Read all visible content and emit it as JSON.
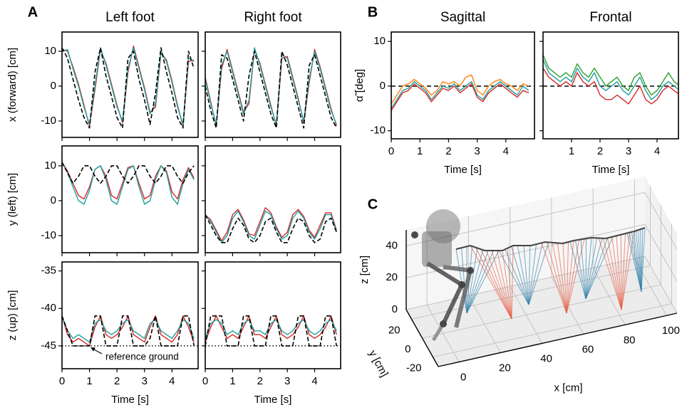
{
  "chart_data": [
    {
      "type": "line",
      "panel_label": "A",
      "title": "Left foot",
      "ylabel": "x (forward) [cm]",
      "x": [
        0,
        0.2,
        0.4,
        0.6,
        0.8,
        1,
        1.2,
        1.4,
        1.6,
        1.8,
        2,
        2.2,
        2.4,
        2.6,
        2.8,
        3,
        3.2,
        3.4,
        3.6,
        3.8,
        4,
        4.2,
        4.4,
        4.6,
        4.8
      ],
      "series": [
        {
          "color": "#d62728",
          "values": [
            10.5,
            10,
            5.5,
            0.5,
            -5.5,
            -11.5,
            -1,
            10.5,
            6.5,
            0.5,
            -5.5,
            -10.5,
            4,
            11.5,
            5.5,
            -0.5,
            -7.5,
            -6,
            9.5,
            7.5,
            1.5,
            -5.5,
            -11.5,
            7,
            7.5
          ]
        },
        {
          "color": "#1f9e9e",
          "values": [
            10,
            10.5,
            5,
            0,
            -6,
            -11,
            0,
            11,
            6,
            0,
            -6,
            -10,
            5,
            11,
            5,
            -1,
            -8,
            -5,
            10,
            7,
            1,
            -6,
            -11,
            8,
            7
          ]
        },
        {
          "color": "#000000",
          "dashed": true,
          "values": [
            11,
            8,
            2,
            -4,
            -9,
            -12,
            4,
            11,
            3,
            -3,
            -9,
            -12,
            8,
            10,
            2,
            -4,
            -11,
            -2,
            11,
            4,
            -2,
            -9,
            -12,
            10,
            5
          ]
        }
      ],
      "xlim": [
        0,
        4.95
      ],
      "ylim": [
        -14.7,
        15.5
      ],
      "xticks": [
        0,
        1,
        2,
        3,
        4
      ],
      "yticks": [
        -10,
        0,
        10
      ],
      "show_xticklabels": false,
      "show_yticklabels": true
    },
    {
      "type": "line",
      "title": "Right foot",
      "x": [
        0,
        0.2,
        0.4,
        0.6,
        0.8,
        1,
        1.2,
        1.4,
        1.6,
        1.8,
        2,
        2.2,
        2.4,
        2.6,
        2.8,
        3,
        3.2,
        3.4,
        3.6,
        3.8,
        4,
        4.2,
        4.4,
        4.6,
        4.8
      ],
      "series": [
        {
          "color": "#d62728",
          "values": [
            2.5,
            -4.5,
            -11.5,
            5,
            10.5,
            4.5,
            -1.5,
            -7.5,
            -5,
            10.5,
            6.5,
            0.5,
            -5.5,
            -11.5,
            8,
            8.5,
            2.5,
            -3.5,
            -10.5,
            1,
            10.5,
            5.5,
            -0.5,
            -6.5,
            -11.5
          ]
        },
        {
          "color": "#1f9e9e",
          "values": [
            2,
            -5,
            -11,
            6,
            10,
            4,
            -2,
            -8,
            -4,
            11,
            6,
            0,
            -6,
            -11,
            9,
            8,
            2,
            -4,
            -10,
            2,
            10,
            5,
            -1,
            -7,
            -11
          ]
        },
        {
          "color": "#000000",
          "dashed": true,
          "values": [
            0,
            -7,
            -12,
            9,
            8,
            2,
            -4,
            -10,
            3,
            10,
            4,
            -2,
            -8,
            -12,
            10,
            6,
            0,
            -6,
            -12,
            6,
            9,
            3,
            -3,
            -9,
            -12
          ]
        }
      ],
      "xlim": [
        0,
        4.95
      ],
      "ylim": [
        -14.7,
        15.5
      ],
      "xticks": [
        0,
        1,
        2,
        3,
        4
      ],
      "yticks": [
        -10,
        0,
        10
      ],
      "show_xticklabels": false,
      "show_yticklabels": false
    },
    {
      "type": "line",
      "ylabel": "y (left) [cm]",
      "x": [
        0,
        0.2,
        0.4,
        0.6,
        0.8,
        1,
        1.2,
        1.4,
        1.6,
        1.8,
        2,
        2.2,
        2.4,
        2.6,
        2.8,
        3,
        3.2,
        3.4,
        3.6,
        3.8,
        4,
        4.2,
        4.4,
        4.6,
        4.8
      ],
      "series": [
        {
          "color": "#d62728",
          "values": [
            11,
            8.5,
            5,
            1.5,
            0.5,
            4,
            9,
            10,
            7,
            1.5,
            0.5,
            5,
            9.5,
            10,
            5,
            0.5,
            1.5,
            7,
            10,
            8.5,
            2.5,
            0.5,
            6,
            9.5,
            6.5
          ]
        },
        {
          "color": "#1f9e9e",
          "values": [
            11,
            8,
            4,
            0,
            -1,
            3,
            9,
            10,
            6,
            0,
            -1,
            4,
            9,
            10,
            4,
            -1,
            0,
            6,
            10,
            8,
            1,
            -1,
            5,
            9,
            6
          ]
        },
        {
          "color": "#000000",
          "dashed": true,
          "values": [
            11,
            8,
            5,
            7,
            10,
            10,
            7,
            5,
            7,
            10,
            10,
            7,
            5,
            7,
            10,
            10,
            7,
            5,
            7,
            10,
            10,
            7,
            5,
            8,
            10
          ]
        }
      ],
      "xlim": [
        0,
        4.95
      ],
      "ylim": [
        -14.9,
        15.7
      ],
      "xticks": [
        0,
        1,
        2,
        3,
        4
      ],
      "yticks": [
        -10,
        0,
        10
      ],
      "show_xticklabels": false,
      "show_yticklabels": true
    },
    {
      "type": "line",
      "x": [
        0,
        0.2,
        0.4,
        0.6,
        0.8,
        1,
        1.2,
        1.4,
        1.6,
        1.8,
        2,
        2.2,
        2.4,
        2.6,
        2.8,
        3,
        3.2,
        3.4,
        3.6,
        3.8,
        4,
        4.2,
        4.4,
        4.6,
        4.8
      ],
      "series": [
        {
          "color": "#d62728",
          "values": [
            -4,
            -5.5,
            -8.5,
            -11.5,
            -9,
            -4,
            -2.5,
            -5.5,
            -9.5,
            -10,
            -6,
            -2,
            -3.5,
            -7.5,
            -10.5,
            -9,
            -4,
            -2.5,
            -4.5,
            -8.5,
            -10.5,
            -7,
            -3.5,
            -3.5,
            -8.5
          ]
        },
        {
          "color": "#1f9e9e",
          "values": [
            -4,
            -6,
            -9,
            -12,
            -10,
            -5,
            -3,
            -6,
            -10,
            -11,
            -7,
            -3,
            -4,
            -8,
            -11,
            -10,
            -5,
            -3,
            -5,
            -9,
            -11,
            -8,
            -4,
            -4,
            -9
          ]
        },
        {
          "color": "#000000",
          "dashed": true,
          "values": [
            -4,
            -7,
            -10,
            -12,
            -12,
            -8,
            -5,
            -7,
            -11,
            -12,
            -10,
            -6,
            -5,
            -9,
            -12,
            -12,
            -8,
            -5,
            -6,
            -10,
            -12,
            -11,
            -6,
            -5,
            -9
          ]
        }
      ],
      "xlim": [
        0,
        4.95
      ],
      "ylim": [
        -14.9,
        15.7
      ],
      "xticks": [
        0,
        1,
        2,
        3,
        4
      ],
      "yticks": [
        -10,
        0,
        10
      ],
      "show_xticklabels": false,
      "show_yticklabels": false
    },
    {
      "type": "line",
      "ylabel": "z (up) [cm]",
      "xlabel": "Time [s]",
      "annotation": "reference ground",
      "x": [
        0,
        0.2,
        0.4,
        0.6,
        0.8,
        1,
        1.2,
        1.4,
        1.6,
        1.8,
        2,
        2.2,
        2.4,
        2.6,
        2.8,
        3,
        3.2,
        3.4,
        3.6,
        3.8,
        4,
        4.2,
        4.4,
        4.6,
        4.8
      ],
      "series": [
        {
          "color": "#d62728",
          "values": [
            -41,
            -43.5,
            -44.5,
            -44,
            -44.5,
            -45,
            -42.5,
            -41,
            -43.5,
            -44,
            -43.5,
            -42.5,
            -41,
            -43.5,
            -44,
            -44.5,
            -42.5,
            -41,
            -43.5,
            -44,
            -44.5,
            -43.5,
            -41,
            -42.5,
            -44.5
          ]
        },
        {
          "color": "#1f9e9e",
          "values": [
            -41,
            -43,
            -44,
            -43.5,
            -44,
            -44.5,
            -42,
            -41.5,
            -43,
            -43.5,
            -43,
            -42,
            -41.5,
            -43,
            -43.5,
            -44,
            -42,
            -41.5,
            -43,
            -43.5,
            -44,
            -43,
            -41.5,
            -42,
            -44
          ]
        },
        {
          "color": "#000000",
          "dashed": true,
          "values": [
            -41,
            -43,
            -45,
            -45,
            -45,
            -45,
            -41,
            -41,
            -45,
            -45,
            -45,
            -41,
            -41,
            -45,
            -45,
            -45,
            -44,
            -41,
            -45,
            -45,
            -45,
            -45,
            -41,
            -41,
            -45
          ]
        }
      ],
      "hlines": [
        {
          "value": -45,
          "style": "dotted"
        }
      ],
      "xlim": [
        0,
        4.95
      ],
      "ylim": [
        -48.05,
        -33.8
      ],
      "xticks": [
        0,
        1,
        2,
        3,
        4
      ],
      "yticks": [
        -45,
        -40,
        -35
      ],
      "show_xticklabels": true,
      "show_yticklabels": true
    },
    {
      "type": "line",
      "xlabel": "Time [s]",
      "x": [
        0,
        0.2,
        0.4,
        0.6,
        0.8,
        1,
        1.2,
        1.4,
        1.6,
        1.8,
        2,
        2.2,
        2.4,
        2.6,
        2.8,
        3,
        3.2,
        3.4,
        3.6,
        3.8,
        4,
        4.2,
        4.4,
        4.6,
        4.8
      ],
      "series": [
        {
          "color": "#d62728",
          "values": [
            -44.5,
            -42.5,
            -41,
            -42.5,
            -44,
            -43.5,
            -44,
            -42.5,
            -41,
            -43.5,
            -43.5,
            -44,
            -42.5,
            -41,
            -43.5,
            -44,
            -43.5,
            -42.5,
            -41,
            -43.5,
            -44,
            -43.5,
            -42.5,
            -41,
            -43.5
          ]
        },
        {
          "color": "#1f9e9e",
          "values": [
            -44,
            -42,
            -41.5,
            -42,
            -43.5,
            -43,
            -43.5,
            -42,
            -41.5,
            -43,
            -43,
            -43.5,
            -42,
            -41.5,
            -43,
            -43.5,
            -43,
            -42,
            -41.5,
            -43,
            -43.5,
            -43,
            -42,
            -41.5,
            -43
          ]
        },
        {
          "color": "#000000",
          "dashed": true,
          "values": [
            -45,
            -41,
            -41,
            -41,
            -45,
            -45,
            -45,
            -41,
            -41,
            -45,
            -45,
            -45,
            -41,
            -41,
            -45,
            -45,
            -45,
            -41,
            -41,
            -45,
            -45,
            -45,
            -41,
            -41,
            -45
          ]
        }
      ],
      "hlines": [
        {
          "value": -45,
          "style": "dotted"
        }
      ],
      "xlim": [
        0,
        4.95
      ],
      "ylim": [
        -48.05,
        -33.8
      ],
      "xticks": [
        0,
        1,
        2,
        3,
        4
      ],
      "yticks": [
        -45,
        -40,
        -35
      ],
      "show_xticklabels": true,
      "show_yticklabels": false
    },
    {
      "type": "line",
      "panel_label": "B",
      "title": "Sagittal",
      "ylabel": "α̃ [deg]",
      "xlabel": "Time [s]",
      "x": [
        0,
        0.2,
        0.4,
        0.6,
        0.8,
        1,
        1.2,
        1.4,
        1.6,
        1.8,
        2,
        2.2,
        2.4,
        2.6,
        2.8,
        3,
        3.2,
        3.4,
        3.6,
        3.8,
        4,
        4.2,
        4.4,
        4.6,
        4.8
      ],
      "series": [
        {
          "color": "#ff7f0e",
          "values": [
            -4,
            -2,
            0,
            0.5,
            1.5,
            0.5,
            -0.5,
            -2,
            -1,
            1,
            0.5,
            1,
            0,
            2,
            2.5,
            -1,
            -2,
            0,
            1,
            1.5,
            0.5,
            0,
            -1,
            0.5,
            0
          ]
        },
        {
          "color": "#d62728",
          "values": [
            -5.5,
            -3.5,
            -1.5,
            -1,
            0.5,
            -0.5,
            -1.5,
            -3.5,
            -2,
            -0.5,
            -1,
            0,
            -1.5,
            -0.5,
            0.5,
            -2.5,
            -3.5,
            -1.5,
            -0.5,
            0.5,
            -0.5,
            -1.5,
            -2.5,
            -1,
            -1.5
          ]
        },
        {
          "color": "#1f9e9e",
          "values": [
            -5,
            -3,
            -1,
            -0.5,
            1,
            0,
            -1,
            -3,
            -1.5,
            0,
            -0.5,
            0.5,
            -1,
            0,
            1,
            -2,
            -3,
            -1,
            0,
            1,
            0,
            -1,
            -2,
            0,
            -1
          ]
        }
      ],
      "hlines": [
        {
          "value": 0,
          "style": "dashed"
        }
      ],
      "xlim": [
        0,
        5
      ],
      "ylim": [
        -11.8,
        12.1
      ],
      "xticks": [
        0,
        1,
        2,
        3,
        4
      ],
      "yticks": [
        -10,
        0,
        10
      ],
      "show_xticklabels": true,
      "show_yticklabels": true
    },
    {
      "type": "line",
      "title": "Frontal",
      "xlabel": "Time [s]",
      "x": [
        0,
        0.2,
        0.4,
        0.6,
        0.8,
        1,
        1.2,
        1.4,
        1.6,
        1.8,
        2,
        2.2,
        2.4,
        2.6,
        2.8,
        3,
        3.2,
        3.4,
        3.6,
        3.8,
        4,
        4.2,
        4.4,
        4.6,
        4.8
      ],
      "series": [
        {
          "color": "#2ca02c",
          "values": [
            7,
            4,
            3,
            2,
            3,
            2,
            5,
            3,
            2,
            4,
            2,
            0,
            1,
            2,
            0,
            -1,
            2,
            3,
            0,
            -2,
            -1,
            1,
            3,
            1,
            0
          ]
        },
        {
          "color": "#d62728",
          "values": [
            4,
            2,
            1,
            0,
            1,
            0,
            3,
            1,
            0,
            1,
            -2,
            -3,
            -3,
            -2,
            -3,
            -4,
            -2,
            0,
            -3,
            -4,
            -3,
            -1,
            0,
            -1,
            -2
          ]
        },
        {
          "color": "#1f9e9e",
          "values": [
            6,
            3,
            2,
            1,
            2,
            1,
            4,
            2,
            1,
            3,
            0,
            -1,
            0,
            1,
            -1,
            -2,
            0,
            2,
            -1,
            -3,
            -2,
            0,
            1,
            0,
            -1
          ]
        }
      ],
      "hlines": [
        {
          "value": 0,
          "style": "dashed"
        }
      ],
      "xlim": [
        0,
        4.75
      ],
      "ylim": [
        -11.8,
        12.1
      ],
      "xticks": [
        1,
        2,
        3,
        4
      ],
      "yticks": [
        -10,
        0,
        10
      ],
      "show_xticklabels": true,
      "show_yticklabels": false
    },
    {
      "type": "3d",
      "panel_label": "C",
      "xlabel": "x [cm]",
      "ylabel": "y [cm]",
      "zlabel": "z [cm]",
      "xlim": [
        -10,
        105
      ],
      "ylim": [
        -30,
        30
      ],
      "zlim": [
        0,
        50
      ],
      "xticks": [
        0,
        20,
        40,
        60,
        80,
        100
      ],
      "yticks": [
        -20,
        0,
        20
      ],
      "zticks": [
        0,
        20,
        40
      ]
    }
  ]
}
